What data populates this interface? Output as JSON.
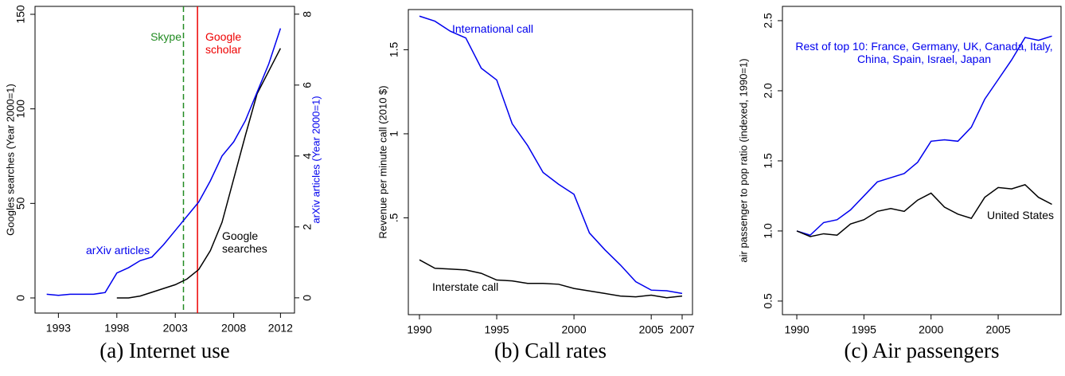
{
  "chart_data": [
    {
      "type": "line",
      "caption": "(a) Internet use",
      "ylabel": "Googles searches (Year 2000=1)",
      "y2label": "arXiv articles (Year 2000=1)",
      "y2label_color": "#0000ee",
      "x": [
        1992,
        1993,
        1994,
        1995,
        1996,
        1997,
        1998,
        1999,
        2000,
        2001,
        2002,
        2003,
        2004,
        2005,
        2006,
        2007,
        2008,
        2009,
        2010,
        2011,
        2012
      ],
      "xlim": [
        1991.0,
        2013.2
      ],
      "xticks": [
        1993,
        1998,
        2003,
        2008,
        2012
      ],
      "ylim": [
        -8,
        154.2
      ],
      "yticks": [
        0,
        50,
        100,
        150
      ],
      "y2lim": [
        -0.43,
        8.22
      ],
      "y2ticks": [
        0,
        2,
        4,
        6,
        8
      ],
      "series": [
        {
          "name": "Google searches",
          "color": "#000000",
          "axis": "y",
          "values": [
            null,
            null,
            null,
            null,
            null,
            null,
            0,
            0,
            1,
            3,
            5,
            7,
            10,
            15,
            25,
            40,
            63,
            86,
            108,
            120,
            132
          ]
        },
        {
          "name": "arXiv articles",
          "color": "#0000ee",
          "axis": "y2",
          "values": [
            0.1,
            0.07,
            0.1,
            0.1,
            0.1,
            0.15,
            0.7,
            0.85,
            1.05,
            1.15,
            1.5,
            1.9,
            2.3,
            2.7,
            3.3,
            4.0,
            4.4,
            5.0,
            5.8,
            6.6,
            7.6
          ]
        }
      ],
      "vlines": [
        {
          "x": 2003.7,
          "label": "Skype",
          "color": "#228b22",
          "dashed": true
        },
        {
          "x": 2004.9,
          "label": "Google scholar",
          "color": "#ee0000",
          "dashed": false
        }
      ]
    },
    {
      "type": "line",
      "caption": "(b) Call rates",
      "ylabel": "Revenue per minute call (2010 $)",
      "x": [
        1990,
        1991,
        1992,
        1993,
        1994,
        1995,
        1996,
        1997,
        1998,
        1999,
        2000,
        2001,
        2002,
        2003,
        2004,
        2005,
        2006,
        2007
      ],
      "xlim": [
        1989.28,
        2007.67
      ],
      "xticks": [
        1990,
        1995,
        2000,
        2005,
        2007
      ],
      "ylim": [
        -0.076,
        1.739
      ],
      "yticks": [
        {
          "value": 0.5,
          "label": ".5"
        },
        1,
        1.5
      ],
      "series": [
        {
          "name": "International call",
          "color": "#0000ee",
          "values": [
            1.7,
            1.67,
            1.61,
            1.57,
            1.39,
            1.32,
            1.06,
            0.93,
            0.77,
            0.7,
            0.64,
            0.41,
            0.31,
            0.22,
            0.12,
            0.07,
            0.066,
            0.05
          ]
        },
        {
          "name": "Interstate call",
          "color": "#000000",
          "values": [
            0.25,
            0.2,
            0.195,
            0.19,
            0.17,
            0.13,
            0.125,
            0.11,
            0.11,
            0.105,
            0.08,
            0.065,
            0.05,
            0.035,
            0.03,
            0.04,
            0.025,
            0.035
          ]
        }
      ]
    },
    {
      "type": "line",
      "caption": "(c) Air passengers",
      "ylabel": "air passenger to pop ratio (indexed, 1990=1)",
      "x": [
        1990,
        1991,
        1992,
        1993,
        1994,
        1995,
        1996,
        1997,
        1998,
        1999,
        2000,
        2001,
        2002,
        2003,
        2004,
        2005,
        2006,
        2007,
        2008,
        2009
      ],
      "xlim": [
        1988.93,
        2009.68
      ],
      "xticks": [
        1990,
        1995,
        2000,
        2005
      ],
      "ylim": [
        0.403,
        2.602
      ],
      "yticks": [
        0.5,
        {
          "value": 1,
          "label": "1.0"
        },
        1.5,
        {
          "value": 2,
          "label": "2.0"
        },
        2.5
      ],
      "series": [
        {
          "name": "Rest of top 10: France, Germany, UK, Canada, Italy, China, Spain, Israel, Japan",
          "color": "#0000ee",
          "values": [
            1.0,
            0.97,
            1.06,
            1.08,
            1.15,
            1.25,
            1.35,
            1.38,
            1.41,
            1.49,
            1.64,
            1.65,
            1.64,
            1.74,
            1.94,
            2.08,
            2.22,
            2.38,
            2.36,
            2.39
          ]
        },
        {
          "name": "United States",
          "color": "#000000",
          "values": [
            1.0,
            0.96,
            0.98,
            0.97,
            1.05,
            1.08,
            1.14,
            1.16,
            1.14,
            1.22,
            1.27,
            1.17,
            1.12,
            1.09,
            1.24,
            1.31,
            1.3,
            1.33,
            1.24,
            1.19
          ]
        }
      ]
    }
  ]
}
